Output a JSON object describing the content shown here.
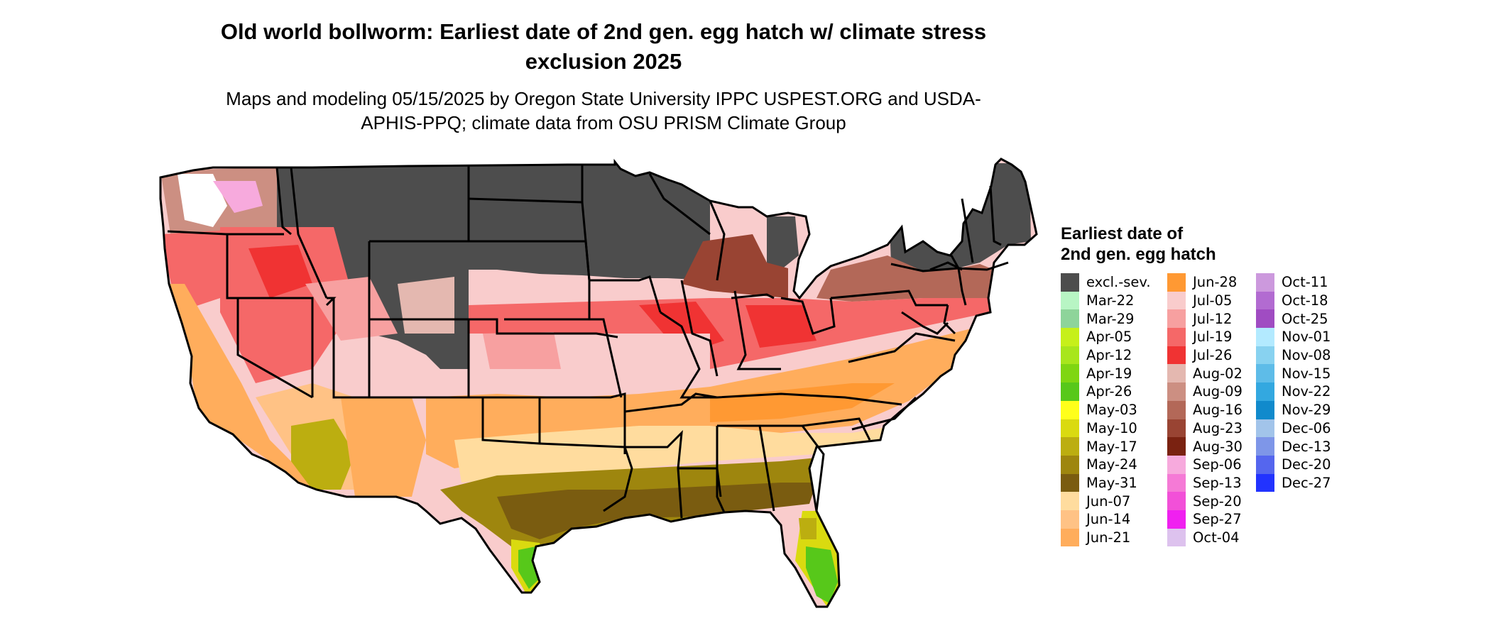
{
  "title": "Old world bollworm: Earliest date of 2nd gen. egg hatch w/ climate stress exclusion 2025",
  "subtitle": "Maps and modeling 05/15/2025 by Oregon State University IPPC USPEST.ORG and USDA-APHIS-PPQ; climate data from OSU PRISM Climate Group",
  "legend": {
    "title": "Earliest date of 2nd gen. egg hatch",
    "items": [
      {
        "label": "excl.-sev.",
        "color": "#4d4d4d"
      },
      {
        "label": "Mar-22",
        "color": "#b8f5c4"
      },
      {
        "label": "Mar-29",
        "color": "#8ed49a"
      },
      {
        "label": "Apr-05",
        "color": "#c6f01a"
      },
      {
        "label": "Apr-12",
        "color": "#a8e61c"
      },
      {
        "label": "Apr-19",
        "color": "#7fd612"
      },
      {
        "label": "Apr-26",
        "color": "#57c81a"
      },
      {
        "label": "May-03",
        "color": "#ffff1a"
      },
      {
        "label": "May-10",
        "color": "#dada10"
      },
      {
        "label": "May-17",
        "color": "#bcae10"
      },
      {
        "label": "May-24",
        "color": "#9e860e"
      },
      {
        "label": "May-31",
        "color": "#7a5c10"
      },
      {
        "label": "Jun-07",
        "color": "#ffdc9e"
      },
      {
        "label": "Jun-14",
        "color": "#ffc285"
      },
      {
        "label": "Jun-21",
        "color": "#ffad5c"
      },
      {
        "label": "Jun-28",
        "color": "#ff9933"
      },
      {
        "label": "Jul-05",
        "color": "#f9cccc"
      },
      {
        "label": "Jul-12",
        "color": "#f7a0a0"
      },
      {
        "label": "Jul-19",
        "color": "#f56868"
      },
      {
        "label": "Jul-26",
        "color": "#f03333"
      },
      {
        "label": "Aug-02",
        "color": "#e4b8b0"
      },
      {
        "label": "Aug-09",
        "color": "#cc8f82"
      },
      {
        "label": "Aug-16",
        "color": "#b36858"
      },
      {
        "label": "Aug-23",
        "color": "#994433"
      },
      {
        "label": "Aug-30",
        "color": "#7a2211"
      },
      {
        "label": "Sep-06",
        "color": "#f7aadd"
      },
      {
        "label": "Sep-13",
        "color": "#f57ad6"
      },
      {
        "label": "Sep-20",
        "color": "#f250d8"
      },
      {
        "label": "Sep-27",
        "color": "#f020f0"
      },
      {
        "label": "Oct-04",
        "color": "#ddc2ee"
      },
      {
        "label": "Oct-11",
        "color": "#cc99dd"
      },
      {
        "label": "Oct-18",
        "color": "#b26bd1"
      },
      {
        "label": "Oct-25",
        "color": "#a04cc2"
      },
      {
        "label": "Nov-01",
        "color": "#b3eaff"
      },
      {
        "label": "Nov-08",
        "color": "#88d2f0"
      },
      {
        "label": "Nov-15",
        "color": "#5ebce8"
      },
      {
        "label": "Nov-22",
        "color": "#33a8e0"
      },
      {
        "label": "Nov-29",
        "color": "#118acc"
      },
      {
        "label": "Dec-06",
        "color": "#a2c4ea"
      },
      {
        "label": "Dec-13",
        "color": "#7e96e8"
      },
      {
        "label": "Dec-20",
        "color": "#5566ee"
      },
      {
        "label": "Dec-27",
        "color": "#2233ff"
      }
    ]
  }
}
